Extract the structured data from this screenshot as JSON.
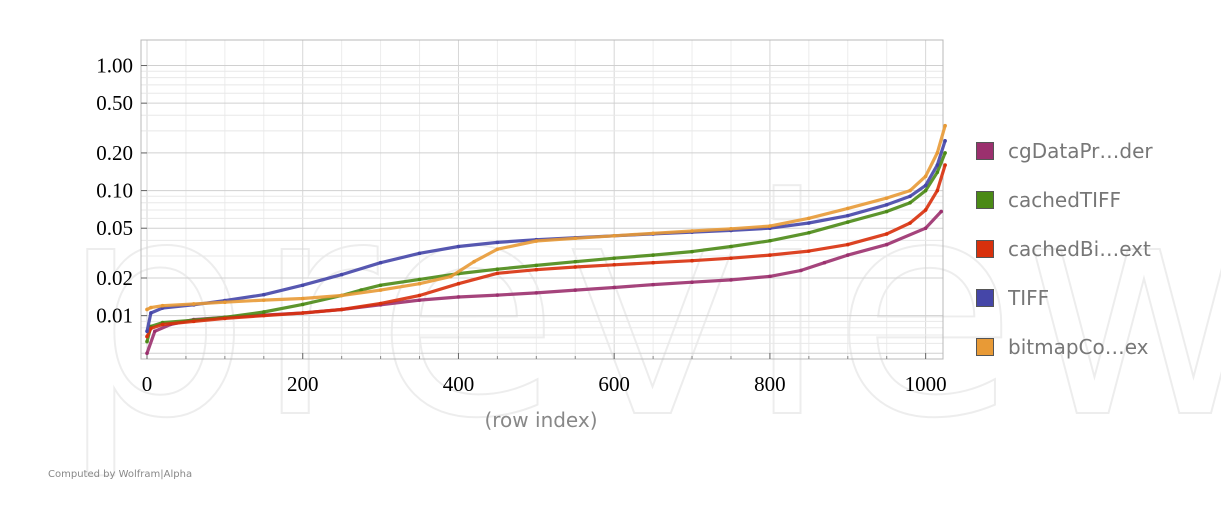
{
  "chart_data": {
    "type": "scatter",
    "title": "",
    "xlabel": "(row index)",
    "ylabel": "",
    "xlim": [
      0,
      1030
    ],
    "ylim": [
      0.0045,
      1.6
    ],
    "yscale": "log",
    "grid": true,
    "legend_position": "right",
    "x_ticks": [
      0,
      200,
      400,
      600,
      800,
      1000
    ],
    "x_tick_labels": [
      "0",
      "200",
      "400",
      "600",
      "800",
      "1000"
    ],
    "y_ticks": [
      0.01,
      0.02,
      0.05,
      0.1,
      0.2,
      0.5,
      1.0
    ],
    "y_tick_labels": [
      "0.01",
      "0.02",
      "0.05",
      "0.10",
      "0.20",
      "0.50",
      "1.00"
    ],
    "series": [
      {
        "name": "cgDataPr…der",
        "color": "#9b306e",
        "x": [
          0,
          10,
          30,
          60,
          100,
          150,
          200,
          250,
          300,
          350,
          400,
          450,
          500,
          550,
          600,
          650,
          700,
          750,
          800,
          840,
          870,
          900,
          950,
          1000,
          1020
        ],
        "y": [
          0.005,
          0.0075,
          0.0085,
          0.0093,
          0.0097,
          0.0101,
          0.0105,
          0.0112,
          0.0122,
          0.0133,
          0.0141,
          0.0146,
          0.0152,
          0.016,
          0.0168,
          0.0177,
          0.0185,
          0.0193,
          0.0206,
          0.023,
          0.0265,
          0.0305,
          0.037,
          0.05,
          0.068
        ]
      },
      {
        "name": "cachedTIFF",
        "color": "#4b8a16",
        "x": [
          0,
          5,
          20,
          60,
          100,
          150,
          200,
          250,
          275,
          300,
          350,
          400,
          450,
          500,
          550,
          600,
          650,
          700,
          750,
          800,
          850,
          900,
          950,
          980,
          1000,
          1015,
          1025
        ],
        "y": [
          0.0062,
          0.0082,
          0.0088,
          0.0092,
          0.0097,
          0.0107,
          0.0123,
          0.0145,
          0.016,
          0.0175,
          0.0195,
          0.0217,
          0.0235,
          0.0252,
          0.027,
          0.0288,
          0.0305,
          0.0325,
          0.0357,
          0.0397,
          0.046,
          0.056,
          0.068,
          0.08,
          0.1,
          0.14,
          0.2
        ]
      },
      {
        "name": "cachedBi…ext",
        "color": "#d8300c",
        "x": [
          0,
          5,
          20,
          60,
          100,
          150,
          200,
          250,
          300,
          350,
          400,
          450,
          500,
          550,
          600,
          650,
          700,
          750,
          800,
          850,
          900,
          950,
          980,
          1000,
          1015,
          1025
        ],
        "y": [
          0.0068,
          0.0079,
          0.0085,
          0.009,
          0.0095,
          0.01,
          0.0105,
          0.0112,
          0.0125,
          0.0145,
          0.018,
          0.0218,
          0.0233,
          0.0245,
          0.0255,
          0.0265,
          0.0275,
          0.0288,
          0.0305,
          0.0328,
          0.037,
          0.045,
          0.055,
          0.07,
          0.1,
          0.16
        ]
      },
      {
        "name": "TIFF",
        "color": "#4546a8",
        "x": [
          0,
          5,
          20,
          60,
          100,
          150,
          200,
          250,
          300,
          350,
          400,
          450,
          500,
          550,
          600,
          650,
          700,
          750,
          800,
          850,
          900,
          950,
          980,
          1000,
          1015,
          1025
        ],
        "y": [
          0.0075,
          0.0105,
          0.0115,
          0.0122,
          0.0132,
          0.0147,
          0.0175,
          0.0213,
          0.0265,
          0.0315,
          0.0357,
          0.0385,
          0.0405,
          0.042,
          0.0435,
          0.045,
          0.0465,
          0.048,
          0.05,
          0.055,
          0.063,
          0.077,
          0.09,
          0.11,
          0.16,
          0.25
        ]
      },
      {
        "name": "bitmapCo…ex",
        "color": "#e89a36",
        "x": [
          0,
          5,
          20,
          60,
          100,
          150,
          200,
          250,
          300,
          350,
          390,
          420,
          450,
          500,
          550,
          600,
          650,
          700,
          750,
          800,
          850,
          900,
          950,
          980,
          1000,
          1015,
          1025
        ],
        "y": [
          0.0112,
          0.0116,
          0.012,
          0.0124,
          0.0128,
          0.0133,
          0.0137,
          0.0145,
          0.016,
          0.018,
          0.0205,
          0.027,
          0.034,
          0.0395,
          0.0415,
          0.0435,
          0.0455,
          0.0475,
          0.0495,
          0.052,
          0.06,
          0.072,
          0.087,
          0.1,
          0.13,
          0.2,
          0.33
        ]
      }
    ]
  },
  "footer": {
    "credit": "Computed by Wolfram|Alpha"
  },
  "watermark": {
    "text": "preview"
  }
}
